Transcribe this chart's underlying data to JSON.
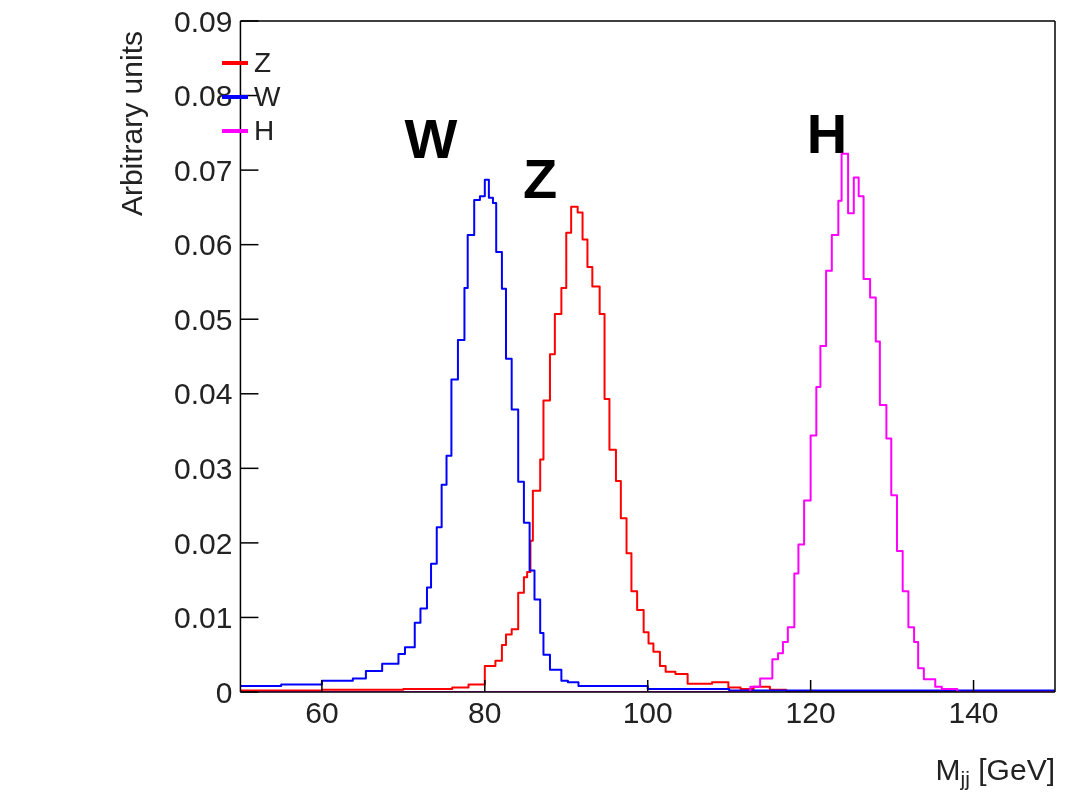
{
  "chart_data": {
    "type": "step",
    "xlabel": "M$_{jj}$ [GeV]",
    "ylabel": "Arbitrary units",
    "xlim": [
      50,
      150
    ],
    "xticks": [
      60,
      80,
      100,
      120,
      140
    ],
    "ylim": [
      0,
      0.09
    ],
    "yticks": [
      0,
      0.01,
      0.02,
      0.03,
      0.04,
      0.05,
      0.06,
      0.07,
      0.08,
      0.09
    ],
    "legend": "top left",
    "grid": false,
    "annotations": [
      "W",
      "Z",
      "H"
    ],
    "series": [
      {
        "name": "Z",
        "color": "#ff0000",
        "x": [
          50,
          60,
          70,
          76,
          78,
          80,
          81.3,
          82.1,
          82.6,
          83.3,
          84.1,
          84.8,
          85.2,
          85.6,
          85.9,
          86.8,
          87.2,
          88,
          88.6,
          89.4,
          90,
          90.6,
          91.4,
          92,
          92.6,
          93.2,
          94.1,
          94.7,
          95.3,
          96.1,
          96.7,
          97.4,
          98,
          98.7,
          99.5,
          100.1,
          100.7,
          101.5,
          102.2,
          103.4,
          104.9,
          107.9,
          109.9,
          111.4,
          113,
          115,
          117,
          150
        ],
        "values": [
          0.0002,
          0.0003,
          0.0004,
          0.0006,
          0.001,
          0.0035,
          0.0042,
          0.0063,
          0.0077,
          0.0084,
          0.0133,
          0.0154,
          0.0161,
          0.0203,
          0.027,
          0.0312,
          0.0391,
          0.0453,
          0.0507,
          0.0542,
          0.0616,
          0.0651,
          0.0643,
          0.0607,
          0.057,
          0.0544,
          0.0507,
          0.0393,
          0.0325,
          0.0283,
          0.0233,
          0.0186,
          0.0135,
          0.011,
          0.008,
          0.0065,
          0.0054,
          0.0035,
          0.0027,
          0.0024,
          0.0011,
          0.0013,
          0.0006,
          0.0004,
          0.0007,
          0.0003,
          0,
          0
        ]
      },
      {
        "name": "W",
        "color": "#0000ff",
        "x": [
          50,
          55,
          60,
          63.8,
          65.4,
          67.4,
          69.4,
          70.2,
          71.4,
          72.1,
          72.9,
          73.4,
          74.1,
          74.7,
          75.3,
          75.9,
          76.7,
          77.5,
          77.9,
          78.7,
          79.4,
          80,
          80.5,
          81,
          81.4,
          82.1,
          82.6,
          83.3,
          84.1,
          84.8,
          85.5,
          86.1,
          86.8,
          87.2,
          88,
          89.4,
          90.2,
          91.5,
          100,
          110,
          150
        ],
        "values": [
          0.0008,
          0.001,
          0.0015,
          0.0018,
          0.0028,
          0.0038,
          0.0051,
          0.006,
          0.0093,
          0.0112,
          0.014,
          0.0172,
          0.0221,
          0.0278,
          0.0317,
          0.0419,
          0.0472,
          0.0542,
          0.0613,
          0.066,
          0.0665,
          0.0687,
          0.0663,
          0.0656,
          0.059,
          0.0541,
          0.0447,
          0.0379,
          0.0282,
          0.0227,
          0.0163,
          0.0124,
          0.0079,
          0.005,
          0.003,
          0.0015,
          0.0013,
          0.0008,
          0.0004,
          0.0002,
          0.0002
        ]
      },
      {
        "name": "H",
        "color": "#ff00ff",
        "x": [
          50,
          110.5,
          112.6,
          113.8,
          115.3,
          116,
          116.6,
          117.2,
          118,
          118.5,
          119.2,
          120,
          120.7,
          121.2,
          121.9,
          122.6,
          123.4,
          123.8,
          124.6,
          125.3,
          125.9,
          126.5,
          127.3,
          128,
          128.5,
          129.3,
          129.9,
          130.6,
          131.3,
          132,
          132.7,
          133.2,
          133.9,
          135.3,
          136.1,
          138,
          150
        ],
        "values": [
          0,
          0,
          0.0007,
          0.0018,
          0.0044,
          0.0052,
          0.0067,
          0.0087,
          0.0159,
          0.0198,
          0.0257,
          0.0344,
          0.0409,
          0.0464,
          0.0565,
          0.0613,
          0.0659,
          0.0722,
          0.0642,
          0.069,
          0.0665,
          0.0554,
          0.0529,
          0.047,
          0.0385,
          0.034,
          0.0264,
          0.0189,
          0.0135,
          0.0087,
          0.0067,
          0.0032,
          0.0017,
          0.0007,
          0.0004,
          0,
          0
        ]
      }
    ]
  }
}
